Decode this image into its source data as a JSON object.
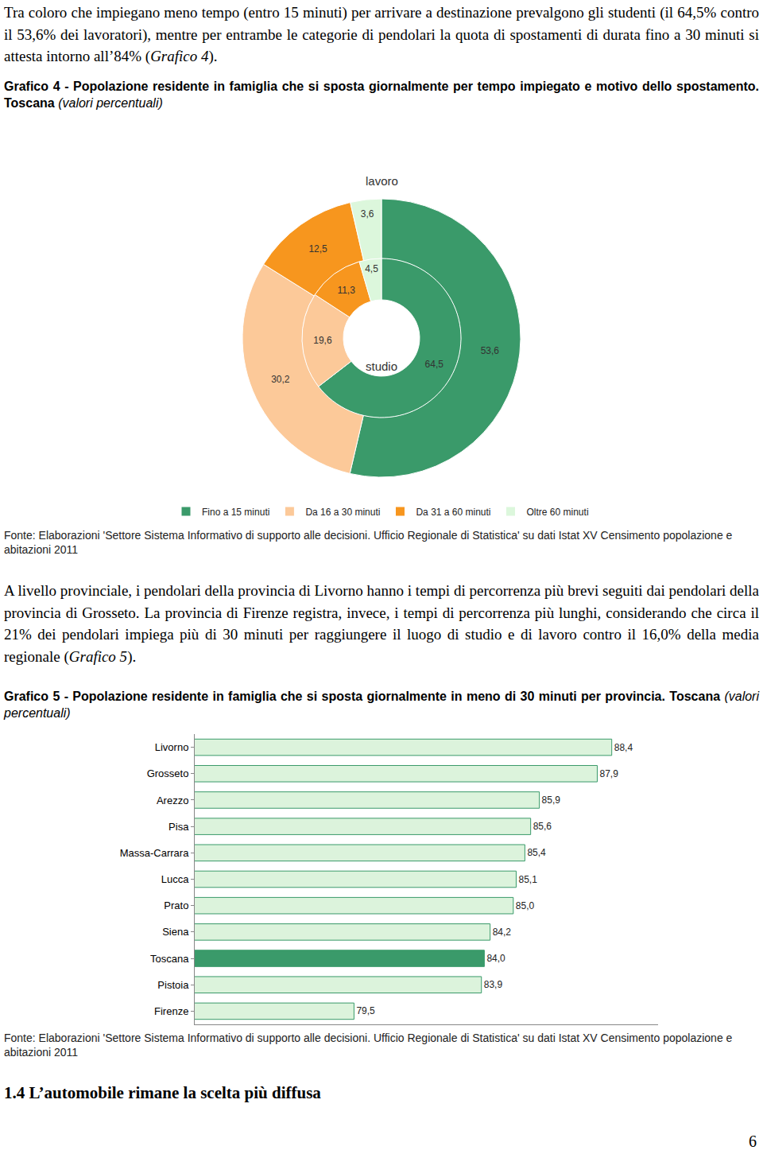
{
  "paragraph_1": [
    {
      "text": "Tra coloro che impiegano meno tempo (entro 15 minuti) per arrivare a destinazione prevalgono gli studenti (il 64,5% contro il 53,6% dei lavoratori), mentre per entrambe le categorie di pendolari la quota di spostamenti di durata fino a 30 minuti si attesta intorno all’84% ("
    },
    {
      "text": "Grafico 4",
      "italic": true
    },
    {
      "text": ")."
    }
  ],
  "chart_data": [
    {
      "type": "pie",
      "title": "Grafico 4 - Popolazione residente in famiglia che si sposta giornalmente per tempo impiegato e motivo dello spostamento. Toscana",
      "subtitle": "(valori percentuali)",
      "source": "Fonte: Elaborazioni 'Settore Sistema Informativo di supporto alle decisioni. Ufficio Regionale di Statistica' su dati Istat XV Censimento popolazione e abitazioni 2011",
      "categories": [
        "Fino a 15 minuti",
        "Da 16 a 30 minuti",
        "Da 31 a 60 minuti",
        "Oltre 60 minuti"
      ],
      "colors": [
        "#3a9a6a",
        "#fcc999",
        "#f7961e",
        "#dcf7dc"
      ],
      "series": [
        {
          "name": "lavoro",
          "values": [
            53.6,
            30.2,
            12.5,
            3.6
          ],
          "value_labels": [
            "53,6",
            "30,2",
            "12,5",
            "3,6"
          ]
        },
        {
          "name": "studio",
          "values": [
            64.5,
            19.6,
            11.3,
            4.5
          ],
          "value_labels": [
            "64,5",
            "19,6",
            "11,3",
            "4,5"
          ]
        }
      ],
      "data_labels": true,
      "legend": "bottom"
    },
    {
      "type": "bar",
      "orientation": "horizontal",
      "title": "Grafico 5 - Popolazione residente in famiglia che si sposta giornalmente in meno di 30 minuti per provincia. Toscana",
      "subtitle": "(valori percentuali)",
      "source": "Fonte: Elaborazioni 'Settore Sistema Informativo di supporto alle decisioni. Ufficio Regionale di Statistica' su dati Istat XV Censimento popolazione e abitazioni 2011",
      "categories": [
        "Livorno",
        "Grosseto",
        "Arezzo",
        "Pisa",
        "Massa-Carrara",
        "Lucca",
        "Prato",
        "Siena",
        "Toscana",
        "Pistoia",
        "Firenze"
      ],
      "values": [
        88.4,
        87.9,
        85.9,
        85.6,
        85.4,
        85.1,
        85.0,
        84.2,
        84.0,
        83.9,
        79.5
      ],
      "value_labels": [
        "88,4",
        "87,9",
        "85,9",
        "85,6",
        "85,4",
        "85,1",
        "85,0",
        "84,2",
        "84,0",
        "83,9",
        "79,5"
      ],
      "colors": [
        "#dcf3dc",
        "#dcf3dc",
        "#dcf3dc",
        "#dcf3dc",
        "#dcf3dc",
        "#dcf3dc",
        "#dcf3dc",
        "#dcf3dc",
        "#3a9a6a",
        "#dcf3dc",
        "#dcf3dc"
      ],
      "xlim": [
        74,
        90
      ],
      "tick_labels": "y",
      "data_labels": true
    }
  ],
  "paragraph_2": [
    {
      "text": "A livello provinciale, i pendolari della provincia di Livorno hanno i tempi di percorrenza più brevi seguiti dai pendolari della provincia di Grosseto. La provincia di Firenze registra, invece, i tempi di percorrenza più lunghi, considerando che circa il 21% dei pendolari impiega più di 30 minuti per raggiungere il luogo di studio e di lavoro contro il 16,0% della media regionale ("
    },
    {
      "text": "Grafico 5",
      "italic": true
    },
    {
      "text": ")."
    }
  ],
  "heading": "1.4 L’automobile rimane la scelta più diffusa",
  "page_number": "6"
}
